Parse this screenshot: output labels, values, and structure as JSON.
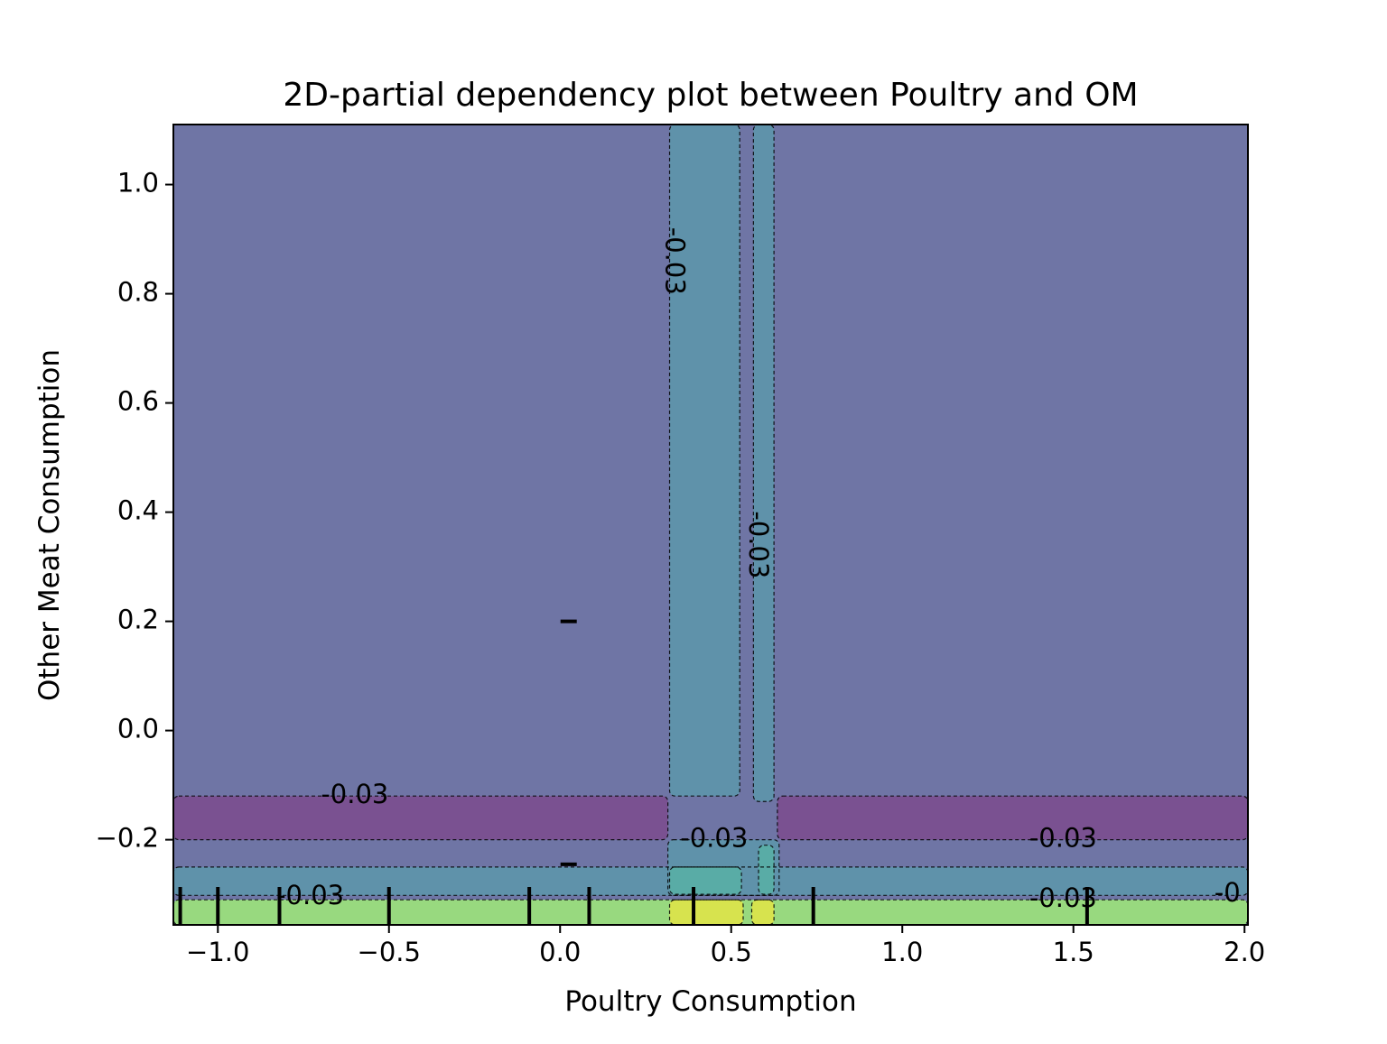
{
  "chart_data": {
    "type": "contour",
    "title": "2D-partial dependency plot between Poultry and OM",
    "xlabel": "Poultry Consumption",
    "ylabel": "Other Meat Consumption",
    "xlim": [
      -1.13,
      2.01
    ],
    "ylim": [
      -0.356,
      1.11
    ],
    "grid": false,
    "x_ticks": [
      -1.0,
      -0.5,
      0.0,
      0.5,
      1.0,
      1.5,
      2.0
    ],
    "x_tick_labels": [
      "−1.0",
      "−0.5",
      "0.0",
      "0.5",
      "1.0",
      "1.5",
      "2.0"
    ],
    "y_ticks": [
      -0.2,
      0.0,
      0.2,
      0.4,
      0.6,
      0.8,
      1.0
    ],
    "y_tick_labels": [
      "−0.2",
      "0.0",
      "0.2",
      "0.4",
      "0.6",
      "0.8",
      "1.0"
    ],
    "colors": {
      "background": "#6f75a5",
      "band_purple": "#7a5191",
      "band_teal": "#5f92aa",
      "band_green_teal": "#59aca6",
      "band_light_green": "#98d97f",
      "band_yellow": "#d7e34e"
    },
    "regions": [
      {
        "level": "purple",
        "x": [
          -1.13,
          0.315
        ],
        "y": [
          -0.2,
          -0.12
        ]
      },
      {
        "level": "purple",
        "x": [
          0.635,
          2.01
        ],
        "y": [
          -0.2,
          -0.12
        ]
      },
      {
        "level": "teal",
        "x": [
          0.32,
          0.525
        ],
        "y": [
          -0.12,
          1.11
        ]
      },
      {
        "level": "teal",
        "x": [
          0.565,
          0.625
        ],
        "y": [
          -0.13,
          1.11
        ]
      },
      {
        "level": "teal",
        "x": [
          -1.13,
          2.01
        ],
        "y": [
          -0.302,
          -0.25
        ]
      },
      {
        "level": "teal",
        "x": [
          0.315,
          0.64
        ],
        "y": [
          -0.302,
          -0.2
        ]
      },
      {
        "level": "green_teal",
        "x": [
          0.32,
          0.53
        ],
        "y": [
          -0.3,
          -0.25
        ]
      },
      {
        "level": "green_teal",
        "x": [
          0.58,
          0.625
        ],
        "y": [
          -0.3,
          -0.21
        ]
      },
      {
        "level": "light_green",
        "x": [
          -1.13,
          2.01
        ],
        "y": [
          -0.356,
          -0.31
        ]
      },
      {
        "level": "yellow",
        "x": [
          0.32,
          0.535
        ],
        "y": [
          -0.356,
          -0.31
        ]
      },
      {
        "level": "yellow",
        "x": [
          0.56,
          0.625
        ],
        "y": [
          -0.356,
          -0.31
        ]
      }
    ],
    "contour_labels": [
      {
        "text": "-0.03",
        "x": 0.33,
        "y": 0.86,
        "rotation": 90
      },
      {
        "text": "-0.03",
        "x": 0.575,
        "y": 0.34,
        "rotation": 90
      },
      {
        "text": "-0.03",
        "x": -0.6,
        "y": -0.12,
        "rotation": 0
      },
      {
        "text": "-0.03",
        "x": 0.45,
        "y": -0.2,
        "rotation": 0
      },
      {
        "text": "-0.03",
        "x": 1.47,
        "y": -0.2,
        "rotation": 0
      },
      {
        "text": "-0.03",
        "x": -0.73,
        "y": -0.305,
        "rotation": 0
      },
      {
        "text": "-0.03",
        "x": 1.47,
        "y": -0.31,
        "rotation": 0
      },
      {
        "text": "-0",
        "x": 1.95,
        "y": -0.3,
        "rotation": 0
      }
    ],
    "rug_x": [
      -1.11,
      -1.0,
      -0.82,
      -0.5,
      -0.09,
      0.085,
      0.39,
      0.74,
      1.54
    ],
    "rug_y": [
      0.2,
      -0.245
    ]
  }
}
